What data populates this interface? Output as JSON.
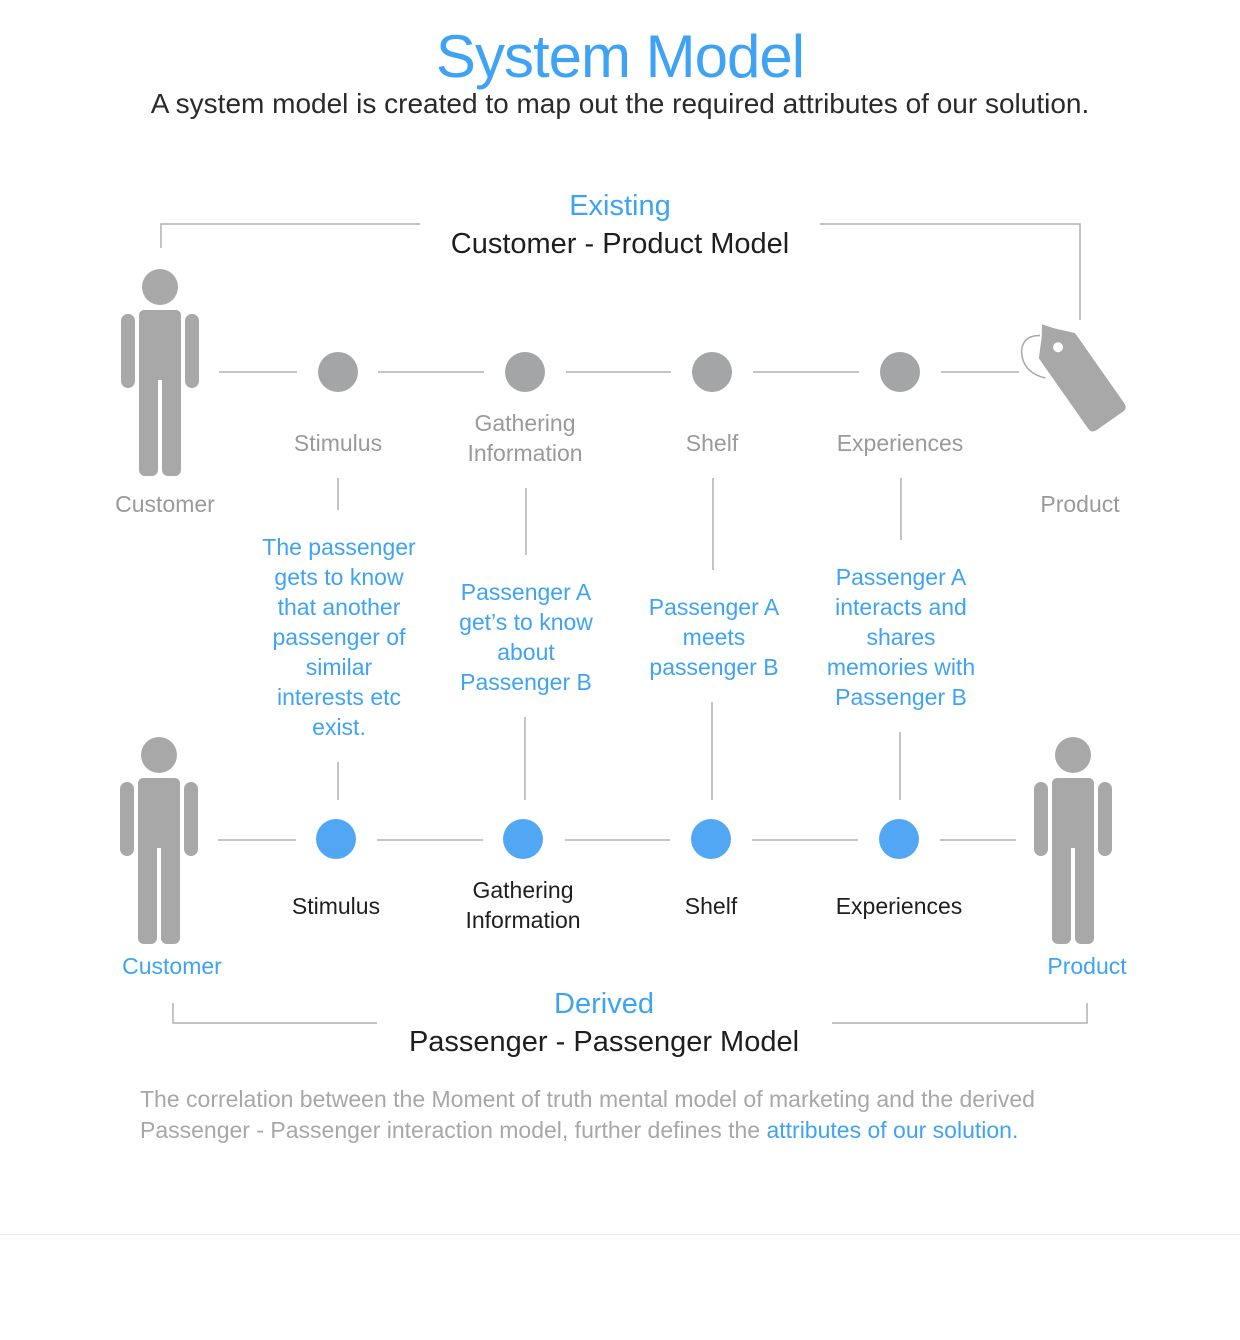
{
  "header": {
    "title": "System Model",
    "subtitle": "A system model is created to map out the required attributes of our solution."
  },
  "existing_model": {
    "qualifier": "Existing",
    "name": "Customer - Product Model",
    "left_actor": "Customer",
    "right_actor": "Product",
    "steps": [
      "Stimulus",
      "Gathering\nInformation",
      "Shelf",
      "Experiences"
    ]
  },
  "mapping_descriptions": [
    "The passenger\ngets to know\nthat another\npassenger of\nsimilar\ninterests etc\nexist.",
    "Passenger A\nget’s to know\nabout\nPassenger B",
    "Passenger A\nmeets\npassenger B",
    "Passenger A\ninteracts and\nshares\nmemories with\nPassenger B"
  ],
  "derived_model": {
    "qualifier": "Derived",
    "name": "Passenger - Passenger Model",
    "left_actor": "Customer",
    "right_actor": "Product",
    "steps": [
      "Stimulus",
      "Gathering\nInformation",
      "Shelf",
      "Experiences"
    ]
  },
  "caption": {
    "text": "The correlation between the Moment of truth mental model of marketing and the derived Passenger - Passenger interaction model, further defines the ",
    "highlight": "attributes of our solution."
  },
  "colors": {
    "accent_blue": "#3fa3f5",
    "node_gray": "#a3a5a6",
    "figure_gray": "#a8a8a8",
    "line_gray": "#b8b8b8"
  },
  "icons": {
    "person": "person-icon",
    "tag": "price-tag-icon"
  }
}
